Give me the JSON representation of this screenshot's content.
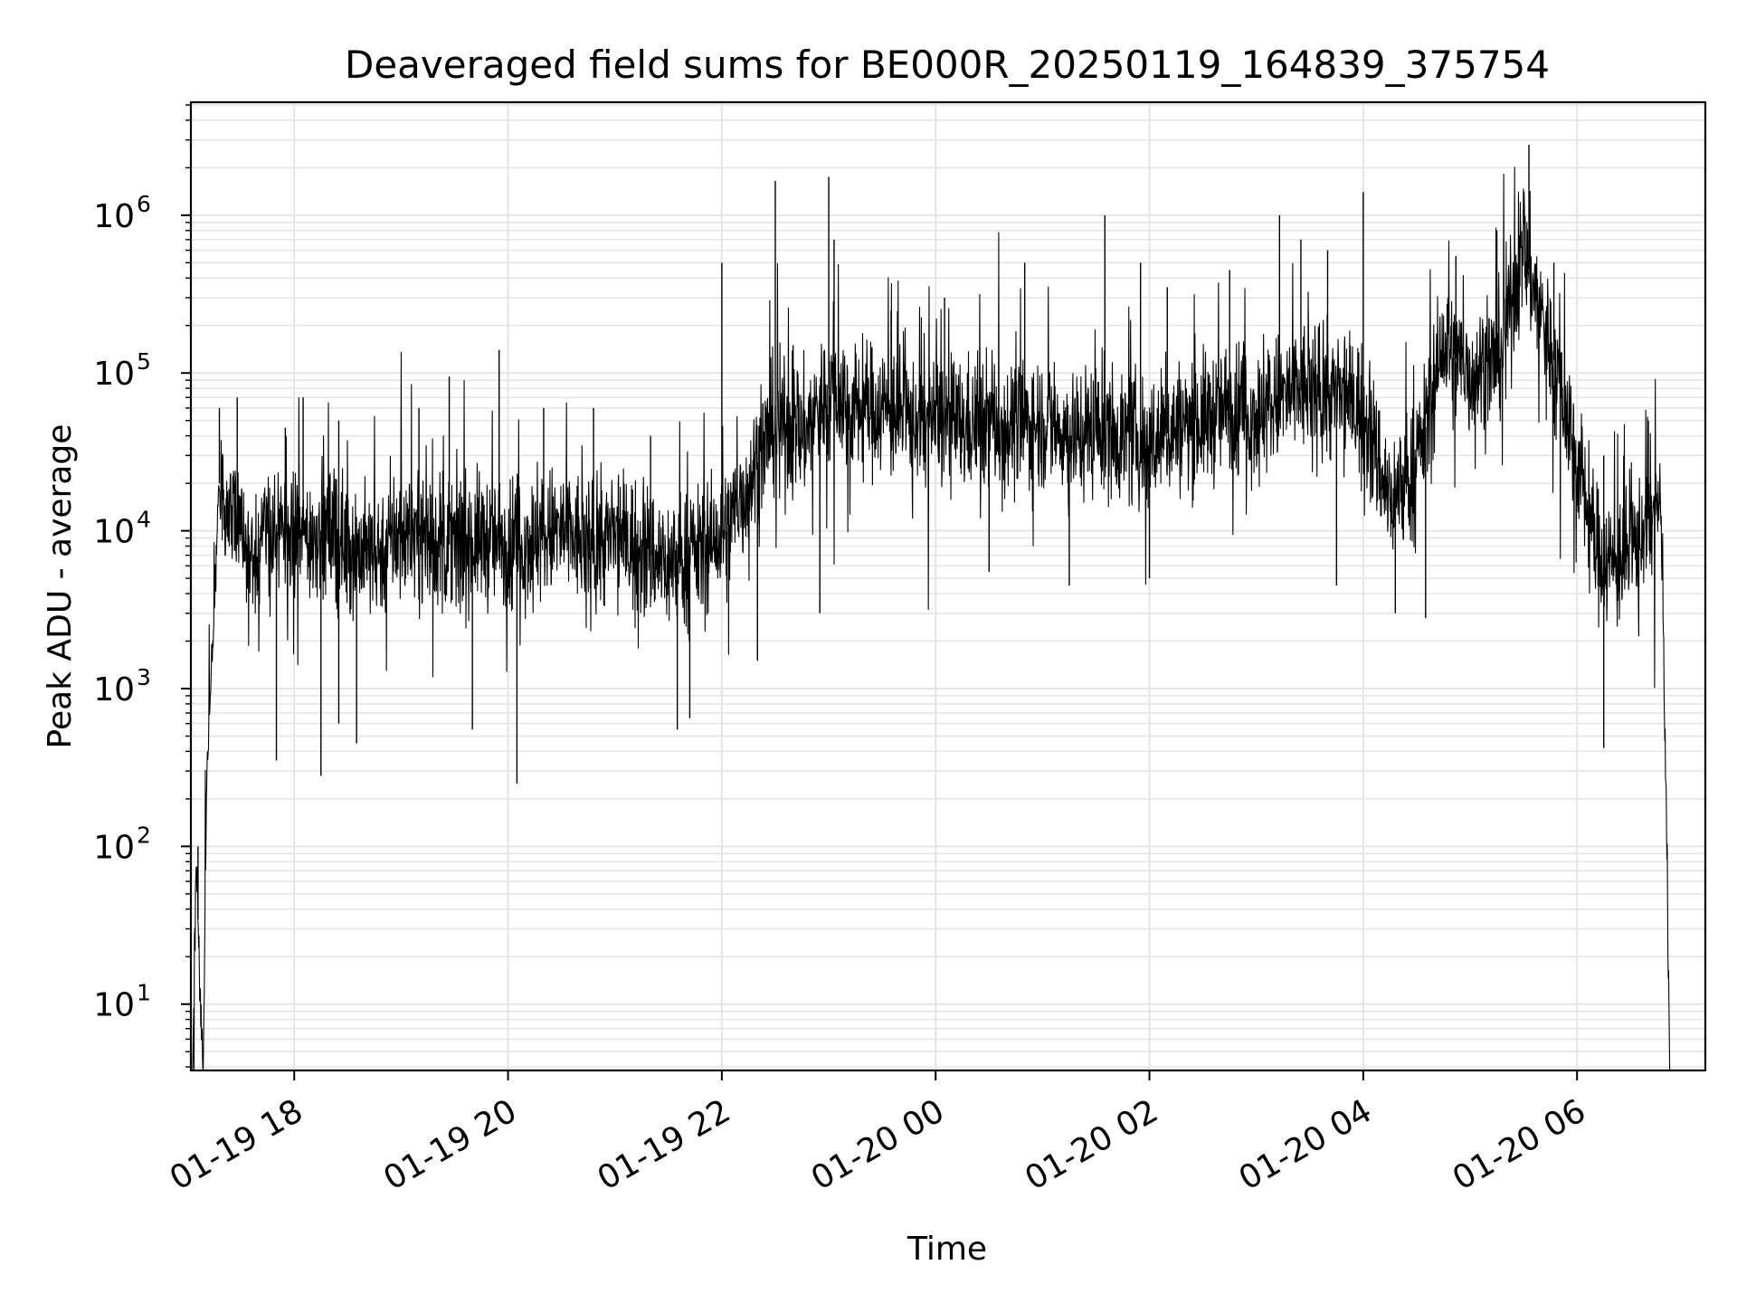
{
  "chart_data": {
    "type": "line",
    "title": "Deaveraged field sums for BE000R_20250119_164839_375754",
    "xlabel": "Time",
    "ylabel": "Peak ADU - average",
    "yscale": "log",
    "ylim": [
      3.8,
      5200000
    ],
    "xlim": [
      "2025-01-19 17:02",
      "2025-01-20 07:12"
    ],
    "grid": true,
    "grid_color": "#e5e5e5",
    "line_color": "#000000",
    "x_ticks": [
      {
        "value": "2025-01-19 18:00",
        "label": "01-19 18"
      },
      {
        "value": "2025-01-19 20:00",
        "label": "01-19 20"
      },
      {
        "value": "2025-01-19 22:00",
        "label": "01-19 22"
      },
      {
        "value": "2025-01-20 00:00",
        "label": "01-20 00"
      },
      {
        "value": "2025-01-20 02:00",
        "label": "01-20 02"
      },
      {
        "value": "2025-01-20 04:00",
        "label": "01-20 04"
      },
      {
        "value": "2025-01-20 06:00",
        "label": "01-20 06"
      }
    ],
    "y_ticks": [
      {
        "value": 10,
        "base": "10",
        "exp": "1"
      },
      {
        "value": 100,
        "base": "10",
        "exp": "2"
      },
      {
        "value": 1000,
        "base": "10",
        "exp": "3"
      },
      {
        "value": 10000,
        "base": "10",
        "exp": "4"
      },
      {
        "value": 100000,
        "base": "10",
        "exp": "5"
      },
      {
        "value": 1000000,
        "base": "10",
        "exp": "6"
      }
    ],
    "series": [
      {
        "x": [
          "2025-01-19 17:03",
          "2025-01-19 17:05",
          "2025-01-19 17:07",
          "2025-01-19 17:09",
          "2025-01-19 17:11",
          "2025-01-19 17:13",
          "2025-01-19 17:15",
          "2025-01-19 17:18",
          "2025-01-19 17:25",
          "2025-01-19 17:35",
          "2025-01-19 17:45",
          "2025-01-19 18:00",
          "2025-01-19 18:15",
          "2025-01-19 18:30",
          "2025-01-19 18:45",
          "2025-01-19 19:00",
          "2025-01-19 19:15",
          "2025-01-19 19:30",
          "2025-01-19 19:45",
          "2025-01-19 20:00",
          "2025-01-19 20:15",
          "2025-01-19 20:30",
          "2025-01-19 20:45",
          "2025-01-19 21:00",
          "2025-01-19 21:15",
          "2025-01-19 21:30",
          "2025-01-19 21:45",
          "2025-01-19 22:00",
          "2025-01-19 22:15",
          "2025-01-19 22:30",
          "2025-01-19 22:45",
          "2025-01-19 23:00",
          "2025-01-19 23:15",
          "2025-01-19 23:30",
          "2025-01-19 23:45",
          "2025-01-20 00:00",
          "2025-01-20 00:15",
          "2025-01-20 00:30",
          "2025-01-20 00:45",
          "2025-01-20 01:00",
          "2025-01-20 01:15",
          "2025-01-20 01:30",
          "2025-01-20 01:45",
          "2025-01-20 02:00",
          "2025-01-20 02:15",
          "2025-01-20 02:30",
          "2025-01-20 02:45",
          "2025-01-20 03:00",
          "2025-01-20 03:15",
          "2025-01-20 03:30",
          "2025-01-20 03:45",
          "2025-01-20 04:00",
          "2025-01-20 04:15",
          "2025-01-20 04:30",
          "2025-01-20 04:45",
          "2025-01-20 05:00",
          "2025-01-20 05:15",
          "2025-01-20 05:30",
          "2025-01-20 05:45",
          "2025-01-20 06:00",
          "2025-01-20 06:10",
          "2025-01-20 06:20",
          "2025-01-20 06:30",
          "2025-01-20 06:40",
          "2025-01-20 06:47",
          "2025-01-20 06:50",
          "2025-01-20 06:52"
        ],
        "y": [
          4,
          100,
          12,
          4,
          300,
          1000,
          3000,
          20000,
          12000,
          8000,
          10000,
          9000,
          10000,
          8000,
          7000,
          10000,
          9000,
          8000,
          9000,
          8000,
          9000,
          10000,
          8000,
          9000,
          8000,
          6000,
          7000,
          9000,
          20000,
          50000,
          40000,
          80000,
          60000,
          60000,
          50000,
          50000,
          45000,
          50000,
          45000,
          50000,
          40000,
          45000,
          40000,
          35000,
          45000,
          50000,
          60000,
          55000,
          70000,
          80000,
          70000,
          60000,
          15000,
          25000,
          150000,
          100000,
          120000,
          600000,
          150000,
          30000,
          8000,
          6000,
          7000,
          12000,
          15000,
          200,
          4
        ],
        "y_envelope": [
          [
            1,
            3
          ],
          [
            1,
            3
          ],
          [
            1,
            3
          ],
          [
            1,
            3
          ],
          [
            1,
            3
          ],
          [
            1,
            3
          ],
          [
            1,
            3
          ],
          [
            2,
            3
          ],
          [
            3,
            3
          ],
          [
            3,
            3
          ],
          [
            3,
            3
          ],
          [
            3,
            3
          ],
          [
            3,
            3
          ],
          [
            3,
            3
          ],
          [
            3,
            3
          ],
          [
            3,
            3
          ],
          [
            3,
            3
          ],
          [
            3,
            3
          ],
          [
            3,
            3
          ],
          [
            3,
            3
          ],
          [
            3,
            3
          ],
          [
            3,
            3
          ],
          [
            3,
            3
          ],
          [
            3,
            3
          ],
          [
            3,
            3
          ],
          [
            3,
            3
          ],
          [
            3,
            3
          ],
          [
            3,
            3
          ],
          [
            3,
            3
          ],
          [
            3,
            3
          ],
          [
            3,
            3
          ],
          [
            3,
            3
          ],
          [
            3,
            3
          ],
          [
            3,
            3
          ],
          [
            3,
            3
          ],
          [
            3,
            3
          ],
          [
            3,
            3
          ],
          [
            3,
            3
          ],
          [
            3,
            3
          ],
          [
            3,
            3
          ],
          [
            3,
            3
          ],
          [
            3,
            3
          ],
          [
            3,
            3
          ],
          [
            3,
            3
          ],
          [
            3,
            3
          ],
          [
            3,
            3
          ],
          [
            3,
            3
          ],
          [
            3,
            3
          ],
          [
            3,
            3
          ],
          [
            3,
            3
          ],
          [
            3,
            3
          ],
          [
            3,
            3
          ],
          [
            3,
            3
          ],
          [
            3,
            3
          ],
          [
            3,
            3
          ],
          [
            3,
            3
          ],
          [
            3,
            3
          ],
          [
            3,
            3
          ],
          [
            3,
            3
          ],
          [
            3,
            3
          ],
          [
            3,
            3
          ],
          [
            3,
            3
          ],
          [
            3,
            3
          ],
          [
            3,
            3
          ],
          [
            2,
            3
          ],
          [
            1,
            1
          ],
          [
            1,
            1
          ]
        ],
        "spikes": [
          {
            "x": "2025-01-19 17:06",
            "y": 100
          },
          {
            "x": "2025-01-19 17:18",
            "y": 60000
          },
          {
            "x": "2025-01-19 17:28",
            "y": 70000
          },
          {
            "x": "2025-01-19 17:55",
            "y": 45000
          },
          {
            "x": "2025-01-19 18:05",
            "y": 70000
          },
          {
            "x": "2025-01-19 18:25",
            "y": 50000
          },
          {
            "x": "2025-01-19 19:10",
            "y": 60000
          },
          {
            "x": "2025-01-19 19:27",
            "y": 95000
          },
          {
            "x": "2025-01-19 19:55",
            "y": 140000
          },
          {
            "x": "2025-01-19 20:20",
            "y": 60000
          },
          {
            "x": "2025-01-19 20:48",
            "y": 60000
          },
          {
            "x": "2025-01-19 21:20",
            "y": 40000
          },
          {
            "x": "2025-01-19 22:00",
            "y": 500000
          },
          {
            "x": "2025-01-19 22:30",
            "y": 1650000
          },
          {
            "x": "2025-01-19 22:40",
            "y": 150000
          },
          {
            "x": "2025-01-19 23:00",
            "y": 1750000
          },
          {
            "x": "2025-01-19 23:03",
            "y": 700000
          },
          {
            "x": "2025-01-19 23:35",
            "y": 250000
          },
          {
            "x": "2025-01-20 00:05",
            "y": 300000
          },
          {
            "x": "2025-01-20 00:50",
            "y": 500000
          },
          {
            "x": "2025-01-20 01:35",
            "y": 1000000
          },
          {
            "x": "2025-01-20 01:55",
            "y": 500000
          },
          {
            "x": "2025-01-20 02:10",
            "y": 350000
          },
          {
            "x": "2025-01-20 02:45",
            "y": 450000
          },
          {
            "x": "2025-01-20 03:13",
            "y": 1000000
          },
          {
            "x": "2025-01-20 03:25",
            "y": 700000
          },
          {
            "x": "2025-01-20 03:40",
            "y": 600000
          },
          {
            "x": "2025-01-20 04:00",
            "y": 1400000
          },
          {
            "x": "2025-01-20 04:52",
            "y": 550000
          },
          {
            "x": "2025-01-20 05:15",
            "y": 800000
          },
          {
            "x": "2025-01-20 05:33",
            "y": 2800000
          },
          {
            "x": "2025-01-20 05:47",
            "y": 500000
          },
          {
            "x": "2025-01-20 06:15",
            "y": 30000
          },
          {
            "x": "2025-01-20 06:40",
            "y": 50000
          }
        ],
        "dips": [
          {
            "x": "2025-01-19 17:50",
            "y": 350
          },
          {
            "x": "2025-01-19 18:15",
            "y": 280
          },
          {
            "x": "2025-01-19 18:25",
            "y": 600
          },
          {
            "x": "2025-01-19 18:35",
            "y": 450
          },
          {
            "x": "2025-01-19 19:40",
            "y": 550
          },
          {
            "x": "2025-01-19 20:05",
            "y": 250
          },
          {
            "x": "2025-01-19 21:35",
            "y": 550
          },
          {
            "x": "2025-01-19 21:42",
            "y": 650
          },
          {
            "x": "2025-01-19 22:20",
            "y": 1500
          },
          {
            "x": "2025-01-19 22:55",
            "y": 3000
          },
          {
            "x": "2025-01-20 00:30",
            "y": 5500
          },
          {
            "x": "2025-01-20 01:15",
            "y": 4500
          },
          {
            "x": "2025-01-20 02:00",
            "y": 5000
          },
          {
            "x": "2025-01-20 03:45",
            "y": 4500
          },
          {
            "x": "2025-01-20 04:18",
            "y": 3000
          },
          {
            "x": "2025-01-20 04:35",
            "y": 2800
          },
          {
            "x": "2025-01-20 06:15",
            "y": 420
          }
        ]
      }
    ]
  }
}
